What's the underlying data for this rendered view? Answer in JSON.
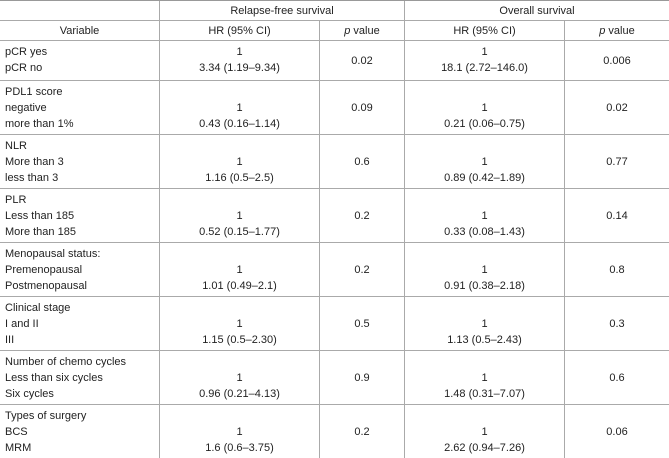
{
  "header": {
    "groups": [
      "Relapse-free survival",
      "Overall survival"
    ],
    "columns": [
      "Variable",
      "HR (95% CI)",
      "p value",
      "HR (95% CI)",
      "p value"
    ]
  },
  "rows": [
    {
      "variable": [
        "pCR yes",
        "pCR no"
      ],
      "rfs_hr": [
        "1",
        "3.34 (1.19–9.34)"
      ],
      "rfs_p": "0.02",
      "os_hr": [
        "1",
        "18.1 (2.72–146.0)"
      ],
      "os_p": "0.006"
    },
    {
      "variable": [
        "PDL1 score",
        "negative",
        "more than 1%"
      ],
      "rfs_hr": [
        "1",
        "0.43 (0.16–1.14)"
      ],
      "rfs_p": "0.09",
      "os_hr": [
        "1",
        "0.21 (0.06–0.75)"
      ],
      "os_p": "0.02"
    },
    {
      "variable": [
        "NLR",
        "More than 3",
        "less than 3"
      ],
      "rfs_hr": [
        "1",
        "1.16 (0.5–2.5)"
      ],
      "rfs_p": "0.6",
      "os_hr": [
        "1",
        "0.89 (0.42–1.89)"
      ],
      "os_p": "0.77"
    },
    {
      "variable": [
        "PLR",
        "Less than 185",
        "More than 185"
      ],
      "rfs_hr": [
        "1",
        "0.52 (0.15–1.77)"
      ],
      "rfs_p": "0.2",
      "os_hr": [
        "1",
        "0.33 (0.08–1.43)"
      ],
      "os_p": "0.14"
    },
    {
      "variable": [
        "Menopausal status:",
        "Premenopausal",
        "Postmenopausal"
      ],
      "rfs_hr": [
        "1",
        "1.01 (0.49–2.1)"
      ],
      "rfs_p": "0.2",
      "os_hr": [
        "1",
        "0.91 (0.38–2.18)"
      ],
      "os_p": "0.8"
    },
    {
      "variable": [
        "Clinical stage",
        "I and II",
        "III"
      ],
      "rfs_hr": [
        "1",
        "1.15 (0.5–2.30)"
      ],
      "rfs_p": "0.5",
      "os_hr": [
        "1",
        "1.13 (0.5–2.43)"
      ],
      "os_p": "0.3"
    },
    {
      "variable": [
        "Number of chemo cycles",
        "Less than six cycles",
        "Six cycles"
      ],
      "rfs_hr": [
        "1",
        "0.96 (0.21–4.13)"
      ],
      "rfs_p": "0.9",
      "os_hr": [
        "1",
        "1.48 (0.31–7.07)"
      ],
      "os_p": "0.6"
    },
    {
      "variable": [
        "Types of surgery",
        "BCS",
        "MRM"
      ],
      "rfs_hr": [
        "1",
        "1.6 (0.6–3.75)"
      ],
      "rfs_p": "0.2",
      "os_hr": [
        "1",
        "2.62 (0.94–7.26)"
      ],
      "os_p": "0.06"
    }
  ]
}
